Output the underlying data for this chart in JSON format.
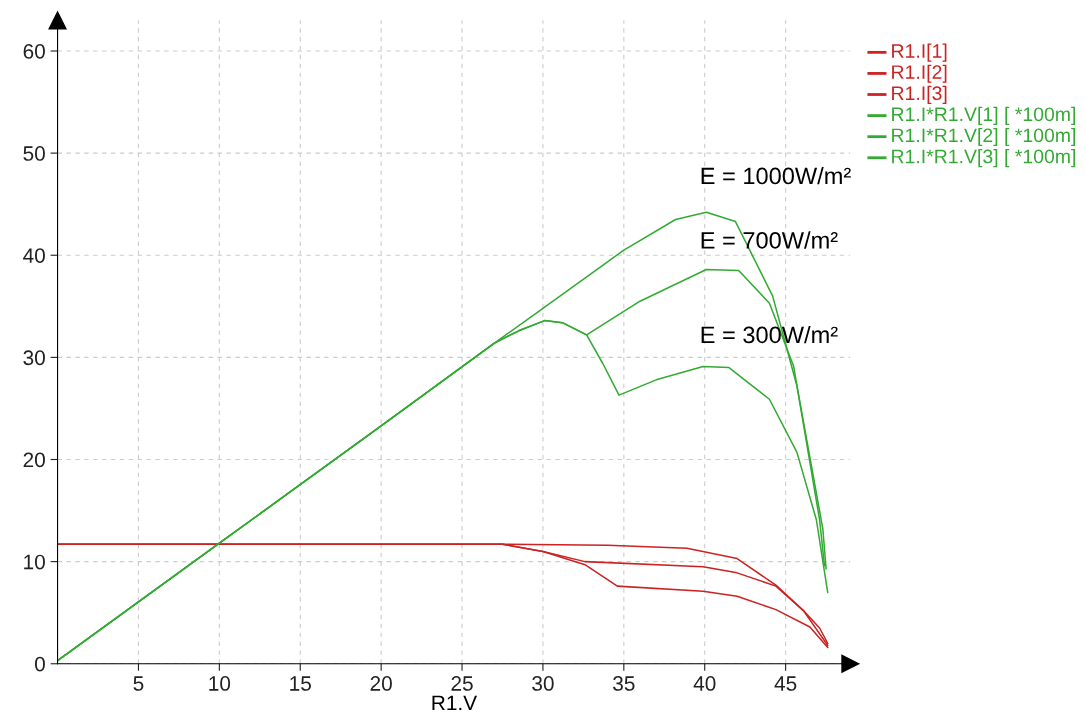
{
  "chart_data": {
    "type": "line",
    "xlabel": "R1.V",
    "xlim": [
      0,
      49
    ],
    "ylim": [
      0,
      63
    ],
    "xticks": [
      5,
      10,
      15,
      20,
      25,
      30,
      35,
      40,
      45
    ],
    "yticks": [
      0,
      10,
      20,
      30,
      40,
      50,
      60
    ],
    "grid": true,
    "legend": "top right",
    "marker": "none",
    "line_style": "solid",
    "series": [
      {
        "name": "R1.I[1]",
        "color": "#cc2222",
        "x": [
          0,
          10,
          20,
          27.5,
          34,
          38.9,
          42.0,
          44.4,
          46.1,
          47.1,
          47.6
        ],
        "values": [
          11.7,
          11.7,
          11.7,
          11.7,
          11.6,
          11.3,
          10.3,
          7.7,
          5.2,
          3.5,
          2.0
        ]
      },
      {
        "name": "R1.I[2]",
        "color": "#cc2222",
        "x": [
          0,
          10,
          20,
          27.5,
          30,
          32.6,
          39.9,
          42.0,
          44.4,
          46.1,
          47.6
        ],
        "values": [
          11.7,
          11.7,
          11.7,
          11.7,
          11.0,
          10.0,
          9.5,
          8.9,
          7.6,
          5.2,
          1.8
        ]
      },
      {
        "name": "R1.I[3]",
        "color": "#cc2222",
        "x": [
          0,
          10,
          20,
          27.5,
          30,
          32.6,
          34.6,
          39.9,
          42.0,
          44.4,
          46.5,
          47.6
        ],
        "values": [
          11.7,
          11.7,
          11.7,
          11.7,
          11.0,
          9.7,
          7.6,
          7.1,
          6.6,
          5.3,
          3.6,
          1.6
        ]
      },
      {
        "name": "R1.I*R1.V[1] [ *100m]",
        "color": "#33aa33",
        "x": [
          0,
          10,
          20,
          27,
          30,
          35,
          38.2,
          40.1,
          41.9,
          44.2,
          45.7,
          47.3,
          47.5
        ],
        "values": [
          0.3,
          11.8,
          23.3,
          31.4,
          34.8,
          40.5,
          43.5,
          44.2,
          43.3,
          36.0,
          27.2,
          13.2,
          9.3
        ]
      },
      {
        "name": "R1.I*R1.V[2] [ *100m]",
        "color": "#33aa33",
        "x": [
          0,
          10,
          20,
          27,
          28.5,
          30.1,
          31.2,
          32.7,
          36,
          40.1,
          42.1,
          44.0,
          45.5,
          47.1,
          47.4
        ],
        "values": [
          0.3,
          11.8,
          23.3,
          31.4,
          32.6,
          33.6,
          33.4,
          32.2,
          35.5,
          38.6,
          38.5,
          35.3,
          29.1,
          14.1,
          9.6
        ]
      },
      {
        "name": "R1.I*R1.V[3] [ *100m]",
        "color": "#33aa33",
        "x": [
          0,
          10,
          20,
          27,
          28.5,
          30.1,
          31.2,
          32.7,
          33.7,
          34.7,
          37,
          39.9,
          41.5,
          44.0,
          45.7,
          46.9,
          47.6
        ],
        "values": [
          0.3,
          11.8,
          23.3,
          31.4,
          32.6,
          33.6,
          33.4,
          32.2,
          29.4,
          26.3,
          27.8,
          29.1,
          29.0,
          25.9,
          20.7,
          14.1,
          7.0
        ]
      }
    ],
    "annotations": [
      "E = 1000W/m²",
      "E = 700W/m²",
      "E = 300W/m²"
    ]
  }
}
